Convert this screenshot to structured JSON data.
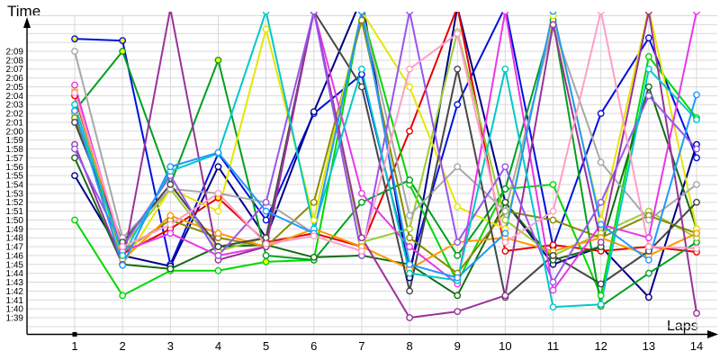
{
  "chart_data": {
    "type": "line",
    "title": "",
    "ylabel": "Time",
    "xlabel": "Laps",
    "x": [
      1,
      2,
      3,
      4,
      5,
      6,
      7,
      8,
      9,
      10,
      11,
      12,
      13,
      14
    ],
    "x_tick_labels": [
      "1",
      "2",
      "3",
      "4",
      "5",
      "6",
      "7",
      "8",
      "9",
      "10",
      "11",
      "12",
      "13",
      "14"
    ],
    "y_tick_labels_top_to_bottom": [
      "2:09",
      "2:08",
      "2:07",
      "2:06",
      "2:05",
      "2:04",
      "2:03",
      "2:02",
      "2:01",
      "2:00",
      "1:59",
      "1:58",
      "1:57",
      "1:56",
      "1:55",
      "1:54",
      "1:53",
      "1:52",
      "1:51",
      "1:50",
      "1:49",
      "1:48",
      "1:47",
      "1:46",
      "1:45",
      "1:44",
      "1:43",
      "1:42",
      "1:41",
      "1:40",
      "1:39"
    ],
    "y_axis": {
      "labeled_min_seconds": 99,
      "labeled_max_seconds": 129,
      "grid_min_seconds": 98,
      "grid_max_seconds": 133,
      "grid_step_seconds": 1
    },
    "values_unit": "seconds",
    "grid": true,
    "legend": "none",
    "marker": "open-circle",
    "axis_color": "#000000",
    "grid_color": "#d9d9d9",
    "background": "#ffffff",
    "highlight_fill": "#ffff00",
    "series": [
      {
        "name": "blue",
        "color": "#0010e0",
        "values": [
          130.4,
          130.2,
          105,
          117.5,
          110,
          122,
          126.4,
          104.5,
          123,
          134,
          107,
          122,
          130.5,
          117
        ]
      },
      {
        "name": "navy",
        "color": "#000088",
        "values": [
          115,
          106,
          104.8,
          116,
          108,
          122.2,
          135,
          103.5,
          134,
          112,
          105,
          107,
          101.3,
          118.5
        ]
      },
      {
        "name": "red",
        "color": "#e60000",
        "values": [
          124,
          106.2,
          109,
          112.5,
          107.5,
          108.5,
          107,
          120,
          134,
          106.5,
          107.2,
          106.5,
          107,
          106.4
        ]
      },
      {
        "name": "bright-green",
        "color": "#00d800",
        "values": [
          110,
          101.5,
          104.3,
          104.3,
          105.3,
          105.5,
          133.5,
          114,
          103,
          113.5,
          114,
          101.5,
          128.4,
          121.5
        ]
      },
      {
        "name": "green",
        "color": "#00a020",
        "values": [
          122.3,
          129,
          114,
          128,
          106,
          105.5,
          112,
          114.5,
          106,
          113.5,
          132.5,
          100.3,
          104,
          107.5
        ]
      },
      {
        "name": "dark-green",
        "color": "#146b14",
        "values": [
          117,
          105,
          104.5,
          107,
          107.2,
          105.8,
          106,
          105,
          101.5,
          112,
          105.5,
          107,
          125,
          109
        ]
      },
      {
        "name": "yellow-green",
        "color": "#9acd32",
        "values": [
          122,
          107,
          113.5,
          106.5,
          108,
          133.5,
          107.5,
          109,
          131.2,
          110,
          106,
          108.5,
          111,
          108
        ]
      },
      {
        "name": "olive",
        "color": "#8a8a00",
        "values": [
          121.5,
          106.5,
          110,
          108,
          107,
          112,
          132.5,
          108,
          104,
          111,
          110,
          108,
          110.5,
          108.5
        ]
      },
      {
        "name": "yellow",
        "color": "#e6e600",
        "values": [
          124.7,
          105,
          113.5,
          111,
          131.5,
          110,
          133.5,
          125,
          111.5,
          109,
          133,
          110,
          133.8,
          109
        ]
      },
      {
        "name": "orange",
        "color": "#ff9800",
        "values": [
          124.4,
          105.5,
          110.5,
          108.5,
          107,
          109,
          107,
          104.5,
          107.5,
          108,
          106.5,
          108,
          106,
          108.5
        ]
      },
      {
        "name": "silver",
        "color": "#a8a8a8",
        "values": [
          129,
          108,
          113.5,
          113,
          112,
          108.5,
          133.5,
          110.5,
          116,
          111,
          132,
          116.5,
          110,
          114
        ]
      },
      {
        "name": "dark-gray",
        "color": "#474747",
        "values": [
          121,
          107.5,
          114,
          107,
          108,
          133.5,
          125,
          102,
          127,
          101.3,
          106,
          102.8,
          106.5,
          112
        ]
      },
      {
        "name": "magenta",
        "color": "#e838e8",
        "values": [
          125.2,
          106.5,
          108.5,
          106,
          107,
          133.5,
          113,
          107,
          102.8,
          133.5,
          102.1,
          109.5,
          108,
          133.5
        ]
      },
      {
        "name": "purple",
        "color": "#993399",
        "values": [
          118.5,
          105,
          133.8,
          105.5,
          107,
          133.5,
          108,
          99,
          99.7,
          101.5,
          132,
          107.5,
          133.5,
          99.5
        ]
      },
      {
        "name": "violet",
        "color": "#9955ee",
        "values": [
          118,
          107,
          115,
          106,
          112,
          133.5,
          106,
          133.5,
          107.5,
          116,
          103,
          112,
          124,
          118
        ]
      },
      {
        "name": "cyan",
        "color": "#00c8c8",
        "values": [
          123,
          106,
          115.5,
          117.5,
          133.5,
          109,
          127,
          104,
          103.2,
          127,
          100.2,
          100.5,
          127,
          121.3
        ]
      },
      {
        "name": "sky-blue",
        "color": "#2299ff",
        "values": [
          122.3,
          104.9,
          116,
          117.6,
          111,
          108.5,
          133.5,
          105,
          103.5,
          108.5,
          133.5,
          109.5,
          105.5,
          124.1
        ]
      },
      {
        "name": "pink",
        "color": "#ff9ec8",
        "values": [
          124.3,
          107,
          109.5,
          113,
          107.3,
          108.2,
          106.5,
          127,
          131,
          107.5,
          111,
          133.5,
          107,
          106.8
        ]
      }
    ],
    "highlighted_points": [
      {
        "series": "blue",
        "lap": 1
      },
      {
        "series": "blue",
        "lap": 2
      },
      {
        "series": "red",
        "lap": 2
      },
      {
        "series": "olive",
        "lap": 2
      },
      {
        "series": "green",
        "lap": 2
      },
      {
        "series": "green",
        "lap": 4
      },
      {
        "series": "red",
        "lap": 4
      },
      {
        "series": "bright-green",
        "lap": 5
      }
    ]
  }
}
